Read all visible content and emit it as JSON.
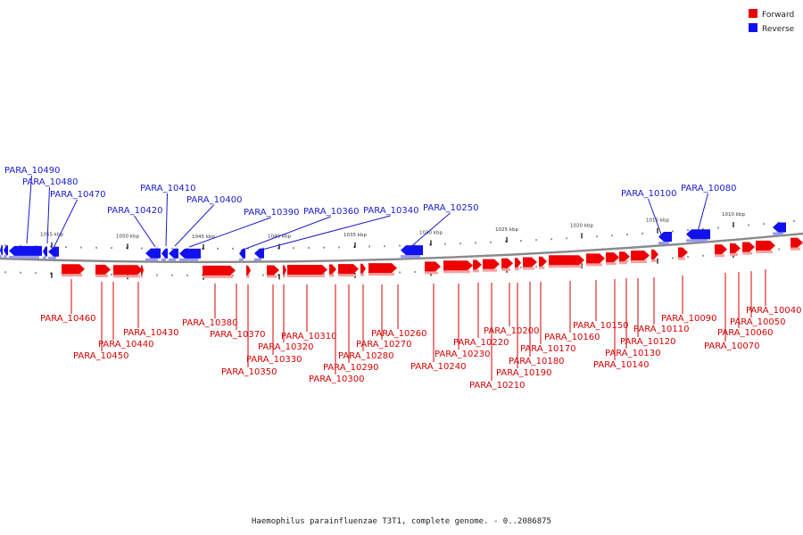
{
  "legend": [
    {
      "label": "Forward",
      "color": "#ee0000"
    },
    {
      "label": "Reverse",
      "color": "#1111ee"
    }
  ],
  "caption": "Haemophilus parainfluenzae T3T1, complete genome. - 0..2086875",
  "ticks": [
    "1055 kbp",
    "1050 kbp",
    "1045 kbp",
    "1040 kbp",
    "1035 kbp",
    "1030 kbp",
    "1025 kbp",
    "1020 kbp",
    "1015 kbp",
    "1010 kbp"
  ],
  "reverse_genes": [
    "PARA_10490",
    "PARA_10480",
    "PARA_10470",
    "PARA_10420",
    "PARA_10410",
    "PARA_10400",
    "PARA_10390",
    "PARA_10360",
    "PARA_10340",
    "PARA_10250",
    "PARA_10100",
    "PARA_10080"
  ],
  "forward_genes": [
    "PARA_10460",
    "PARA_10450",
    "PARA_10440",
    "PARA_10430",
    "PARA_10380",
    "PARA_10370",
    "PARA_10350",
    "PARA_10330",
    "PARA_10320",
    "PARA_10310",
    "PARA_10300",
    "PARA_10290",
    "PARA_10280",
    "PARA_10270",
    "PARA_10260",
    "PARA_10240",
    "PARA_10230",
    "PARA_10220",
    "PARA_10210",
    "PARA_10200",
    "PARA_10190",
    "PARA_10180",
    "PARA_10170",
    "PARA_10160",
    "PARA_10150",
    "PARA_10140",
    "PARA_10130",
    "PARA_10120",
    "PARA_10110",
    "PARA_10090",
    "PARA_10070",
    "PARA_10060",
    "PARA_10050",
    "PARA_10040"
  ]
}
